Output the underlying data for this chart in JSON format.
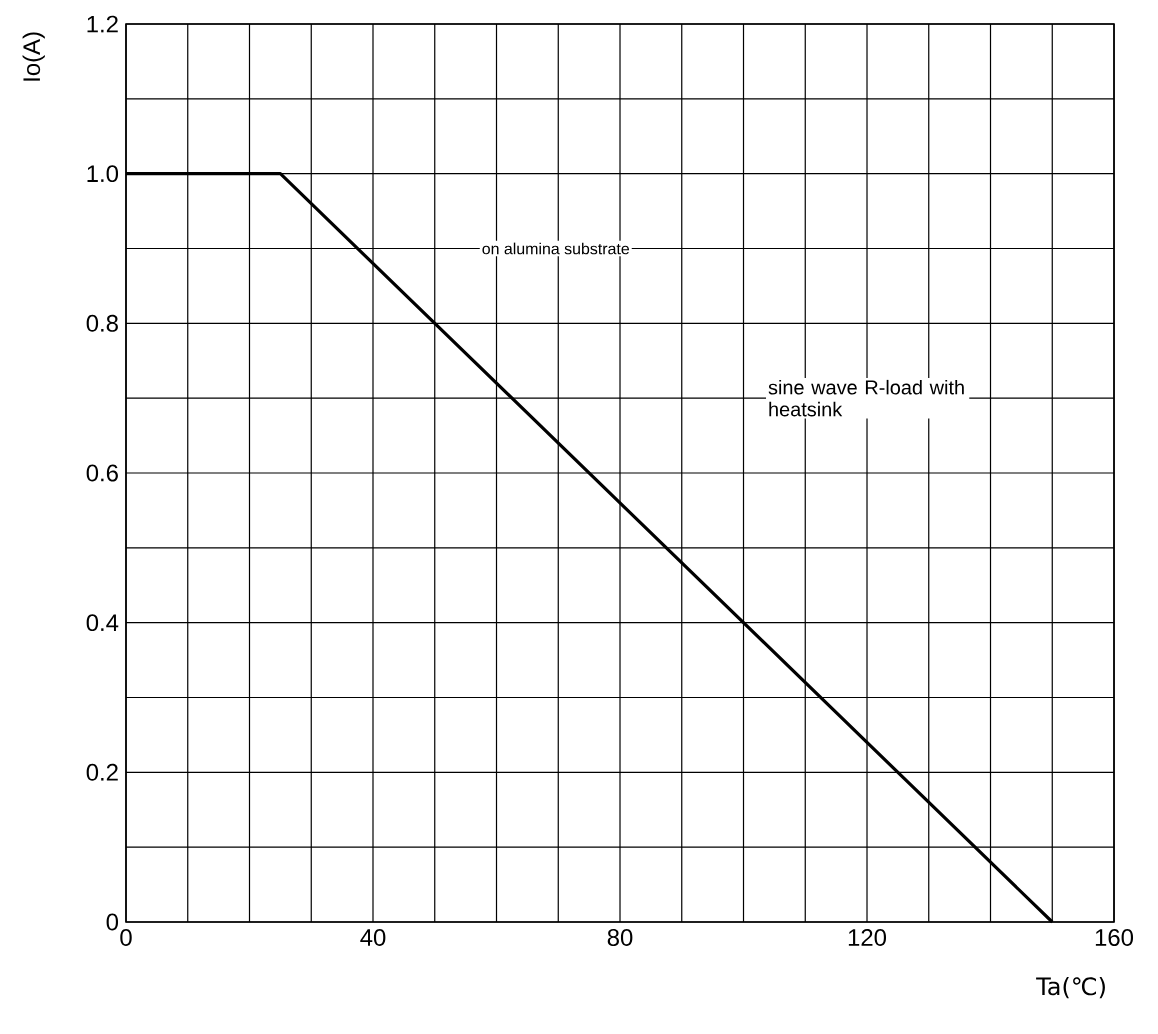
{
  "chart_data": {
    "type": "line",
    "xlabel": "Ta(℃)",
    "ylabel": "Io(A)",
    "x": [
      0,
      25,
      150
    ],
    "series": [
      {
        "color": "#000000",
        "values": [
          1.0,
          1.0,
          0
        ]
      }
    ],
    "xlim": [
      0,
      160
    ],
    "ylim": [
      0,
      1.2
    ],
    "xticks": [
      0,
      40,
      80,
      120,
      160
    ],
    "yticks": [
      {
        "value": 0,
        "label": "0"
      },
      {
        "value": 0.2,
        "label": "0.2"
      },
      {
        "value": 0.4,
        "label": "0.4"
      },
      {
        "value": 0.6,
        "label": "0.6"
      },
      {
        "value": 0.8,
        "label": "0.8"
      },
      {
        "value": 1.0,
        "label": "1.0"
      },
      {
        "value": 1.2,
        "label": "1.2"
      }
    ],
    "grid": true,
    "annotations": [
      "on alumina substrate",
      "sine wave R-load with heatsink"
    ]
  }
}
